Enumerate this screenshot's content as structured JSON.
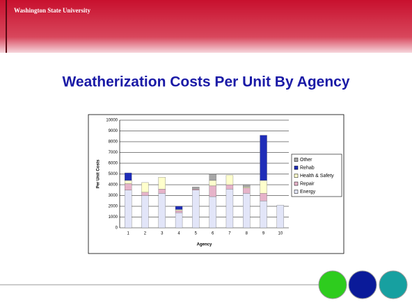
{
  "header": {
    "logo": "Washington State University"
  },
  "chart_data": {
    "type": "stacked_bar",
    "title": "Weatherization Costs Per Unit By Agency",
    "x_label": "Agency",
    "y_label": "Per Unit Costs",
    "categories": [
      "1",
      "2",
      "3",
      "4",
      "5",
      "6",
      "7",
      "8",
      "9",
      "10"
    ],
    "series": [
      {
        "name": "Energy",
        "color": "#e2e5f8",
        "values": [
          3500,
          3000,
          3200,
          1400,
          3500,
          2900,
          3600,
          3200,
          2500,
          2100
        ]
      },
      {
        "name": "Repair",
        "color": "#e6b3c9",
        "values": [
          600,
          300,
          400,
          200,
          100,
          1000,
          400,
          500,
          700,
          0
        ]
      },
      {
        "name": "Health & Safety",
        "color": "#ffffcc",
        "values": [
          300,
          900,
          1100,
          100,
          0,
          500,
          900,
          100,
          1200,
          0
        ]
      },
      {
        "name": "Rehab",
        "color": "#1f2db8",
        "values": [
          700,
          0,
          0,
          300,
          0,
          0,
          0,
          0,
          4200,
          0
        ]
      },
      {
        "name": "Other",
        "color": "#a6a6a6",
        "values": [
          0,
          0,
          0,
          0,
          200,
          600,
          0,
          200,
          0,
          0
        ]
      }
    ],
    "ylim": [
      0,
      10000
    ],
    "yticks": [
      0,
      1000,
      2000,
      3000,
      4000,
      5000,
      6000,
      7000,
      8000,
      9000,
      10000
    ],
    "grid": true,
    "legend": "right"
  }
}
